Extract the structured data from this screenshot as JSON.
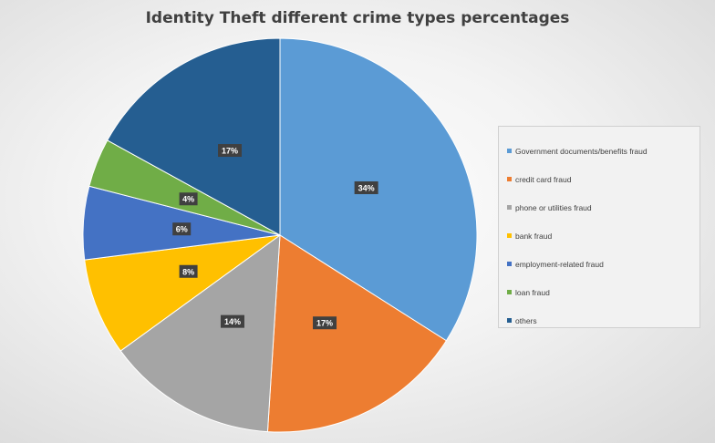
{
  "chart_data": {
    "type": "pie",
    "title": "Identity Theft different crime types percentages",
    "legend_position": "right",
    "slices": [
      {
        "label": "Government documents/benefits fraud",
        "value": 34,
        "display": "34%",
        "color": "#5b9bd5"
      },
      {
        "label": "credit card fraud",
        "value": 17,
        "display": "17%",
        "color": "#ed7d31"
      },
      {
        "label": "phone or utilities fraud",
        "value": 14,
        "display": "14%",
        "color": "#a5a5a5"
      },
      {
        "label": "bank fraud",
        "value": 8,
        "display": "8%",
        "color": "#ffc000"
      },
      {
        "label": "employment-related fraud",
        "value": 6,
        "display": "6%",
        "color": "#4472c4"
      },
      {
        "label": "loan fraud",
        "value": 4,
        "display": "4%",
        "color": "#70ad47"
      },
      {
        "label": "others",
        "value": 17,
        "display": "17%",
        "color": "#255e91"
      }
    ]
  }
}
